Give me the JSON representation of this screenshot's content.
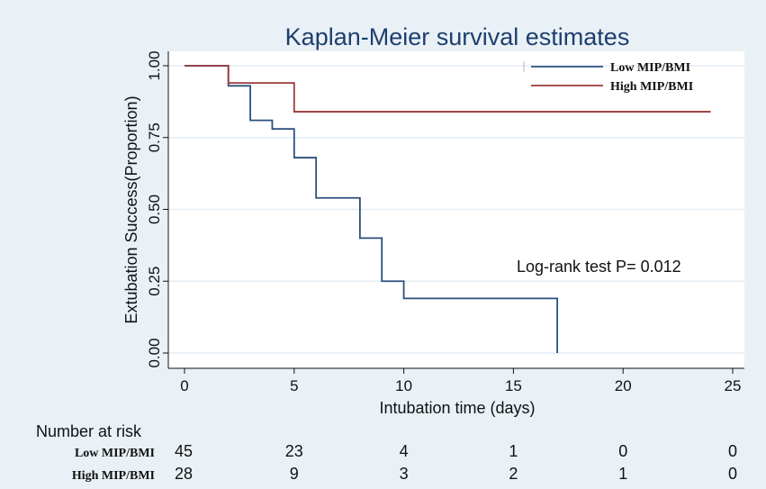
{
  "chart_data": {
    "type": "line",
    "title": "Kaplan-Meier survival estimates",
    "xlabel": "Intubation time (days)",
    "ylabel": "Extubation Success(Proportion)",
    "xlim": [
      0,
      25
    ],
    "ylim": [
      0,
      1
    ],
    "x_ticks": [
      "0",
      "5",
      "10",
      "15",
      "20",
      "25"
    ],
    "y_ticks": [
      "0.00",
      "0.25",
      "0.50",
      "0.75",
      "1.00"
    ],
    "grid": "horizontal",
    "legend_position": "top-right",
    "series": [
      {
        "name": "Low MIP/BMI",
        "color": "#2b4f7e",
        "x": [
          0,
          2,
          3,
          4,
          5,
          6,
          8,
          9,
          10,
          17
        ],
        "y": [
          1.0,
          0.93,
          0.81,
          0.78,
          0.68,
          0.54,
          0.4,
          0.25,
          0.19,
          0.0
        ]
      },
      {
        "name": "High MIP/BMI",
        "color": "#9b3a3a",
        "x": [
          0,
          2,
          5,
          24
        ],
        "y": [
          1.0,
          0.94,
          0.84,
          0.84
        ]
      }
    ],
    "annotation": "Log-rank test P= 0.012",
    "risk_table": {
      "heading": "Number at risk",
      "times": [
        0,
        5,
        10,
        15,
        20,
        25
      ],
      "rows": [
        {
          "label": "Low MIP/BMI",
          "values": [
            "45",
            "23",
            "4",
            "1",
            "0",
            "0"
          ]
        },
        {
          "label": "High MIP/BMI",
          "values": [
            "28",
            "9",
            "3",
            "2",
            "1",
            "0"
          ]
        }
      ]
    }
  }
}
